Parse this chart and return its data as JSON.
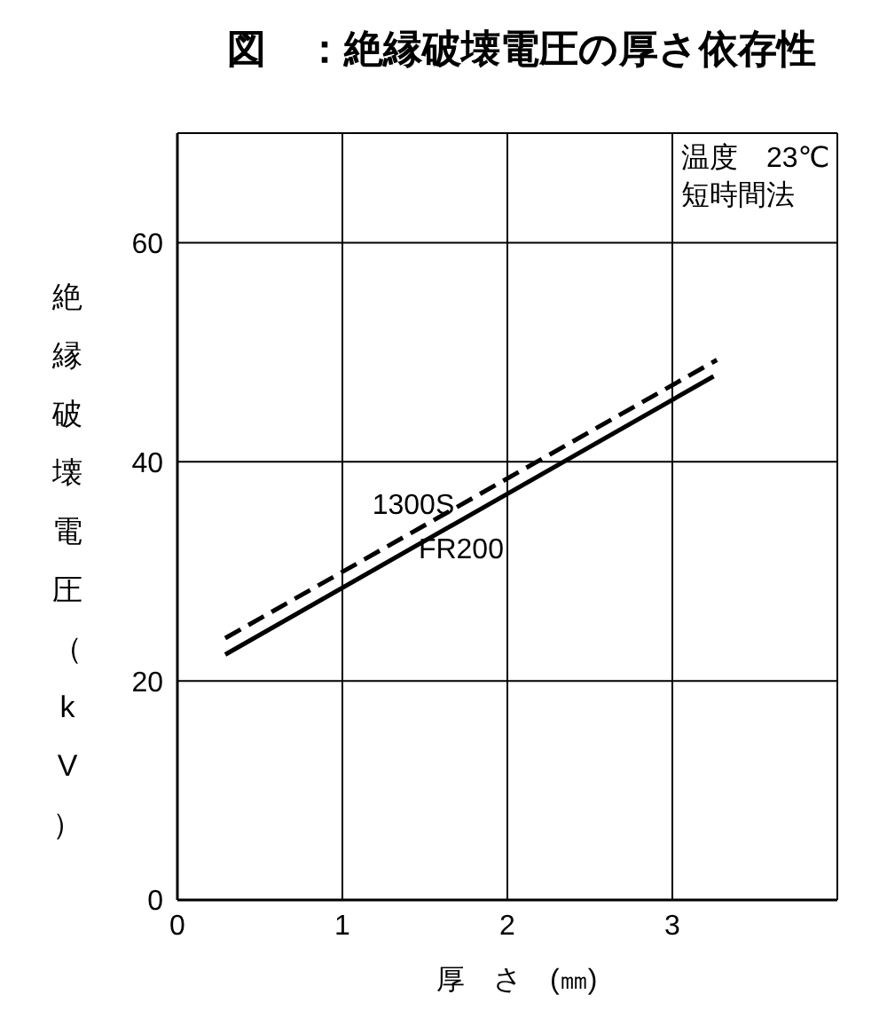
{
  "chart_data": {
    "type": "line",
    "title": "図　：絶縁破壊電圧の厚さ依存性",
    "xlabel": "厚　さ　(㎜)",
    "ylabel": "絶縁破壊電圧（kV）",
    "annotations": [
      "温度　23℃",
      "短時間法"
    ],
    "xlim": [
      0,
      4
    ],
    "xticks": [
      0,
      1,
      2,
      3
    ],
    "ylim": [
      0,
      70
    ],
    "yticks": [
      0,
      20,
      40,
      60
    ],
    "grid": true,
    "legend": false,
    "marker": "none",
    "series": [
      {
        "name": "1300S",
        "color": "#000000",
        "line_style": "dashed",
        "x": [
          0.29,
          3.27
        ],
        "values": [
          23.9,
          49.3
        ]
      },
      {
        "name": "FR200",
        "color": "#000000",
        "line_style": "solid",
        "x": [
          0.29,
          3.25
        ],
        "values": [
          22.4,
          47.8
        ]
      }
    ]
  }
}
